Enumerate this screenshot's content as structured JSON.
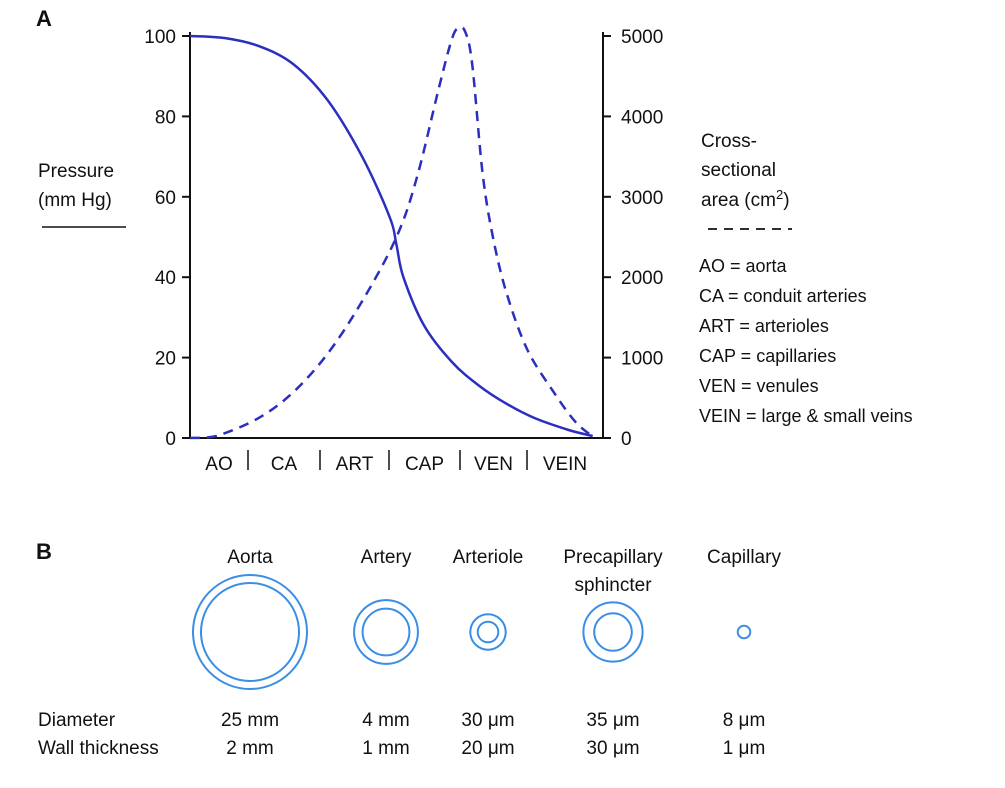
{
  "colors": {
    "curve": "#2b2ebf",
    "vessel_ring": "#3a8ee6",
    "ink": "#111111"
  },
  "panel_a": {
    "label": "A",
    "left_axis": {
      "ticks": [
        "100",
        "80",
        "60",
        "40",
        "20",
        "0"
      ],
      "label_line1": "Pressure",
      "label_line2": "(mm Hg)",
      "style_key": "solid"
    },
    "right_axis": {
      "ticks": [
        "5000",
        "4000",
        "3000",
        "2000",
        "1000",
        "0"
      ],
      "label_line1": "Cross-",
      "label_line2": "sectional",
      "label_line3_main": "area (cm",
      "label_line3_sup": "2",
      "label_line3_end": ")",
      "style_key": "- - - - -"
    },
    "segments": [
      "AO",
      "CA",
      "ART",
      "CAP",
      "VEN",
      "VEIN"
    ],
    "legend": [
      "AO = aorta",
      "CA = conduit arteries",
      "ART = arterioles",
      "CAP = capillaries",
      "VEN = venules",
      "VEIN = large & small veins"
    ]
  },
  "chart_data": {
    "type": "line",
    "left_ylim": [
      0,
      100
    ],
    "right_ylim": [
      0,
      5000
    ],
    "x_ticks": [
      "AO",
      "CA",
      "ART",
      "CAP",
      "VEN",
      "VEIN"
    ],
    "x_range": [
      0,
      6
    ],
    "series": [
      {
        "name": "Pressure (mm Hg)",
        "axis": "left",
        "line_style": "solid",
        "x": [
          0,
          0.5,
          1.0,
          1.5,
          2.0,
          2.5,
          2.9,
          3.0,
          3.1,
          3.4,
          3.8,
          4.2,
          4.6,
          5.0,
          5.5,
          5.85
        ],
        "y": [
          100,
          99.5,
          97.5,
          93,
          84,
          70,
          55,
          48,
          40,
          28,
          19,
          13,
          8.5,
          5,
          2,
          0.5
        ]
      },
      {
        "name": "Cross-sectional area (cm2)",
        "axis": "right",
        "line_style": "dashed",
        "x": [
          0,
          0.4,
          1.0,
          1.5,
          2.0,
          2.5,
          3.0,
          3.3,
          3.6,
          3.8,
          3.9,
          4.0,
          4.1,
          4.25,
          4.4,
          4.6,
          4.9,
          5.3,
          5.6,
          5.85
        ],
        "y": [
          0,
          30,
          250,
          570,
          1050,
          1700,
          2500,
          3250,
          4300,
          4950,
          5100,
          5050,
          4650,
          3300,
          2500,
          1800,
          1100,
          550,
          200,
          20
        ]
      }
    ]
  },
  "panel_b": {
    "label": "B",
    "row_labels": {
      "diameter": "Diameter",
      "wall": "Wall thickness"
    },
    "vessels": [
      {
        "name": "Aorta",
        "name2": "",
        "diameter": "25 mm",
        "wall": "2 mm",
        "outer": 1.0,
        "inner": 0.86
      },
      {
        "name": "Artery",
        "name2": "",
        "diameter": "4 mm",
        "wall": "1 mm",
        "outer": 0.56,
        "inner": 0.41
      },
      {
        "name": "Arteriole",
        "name2": "",
        "diameter": "30 μm",
        "wall": "20 μm",
        "outer": 0.31,
        "inner": 0.18
      },
      {
        "name": "Precapillary",
        "name2": "sphincter",
        "diameter": "35 μm",
        "wall": "30 μm",
        "outer": 0.52,
        "inner": 0.33
      },
      {
        "name": "Capillary",
        "name2": "",
        "diameter": "8 μm",
        "wall": "1 μm",
        "outer": 0.11,
        "inner": 0
      }
    ]
  }
}
